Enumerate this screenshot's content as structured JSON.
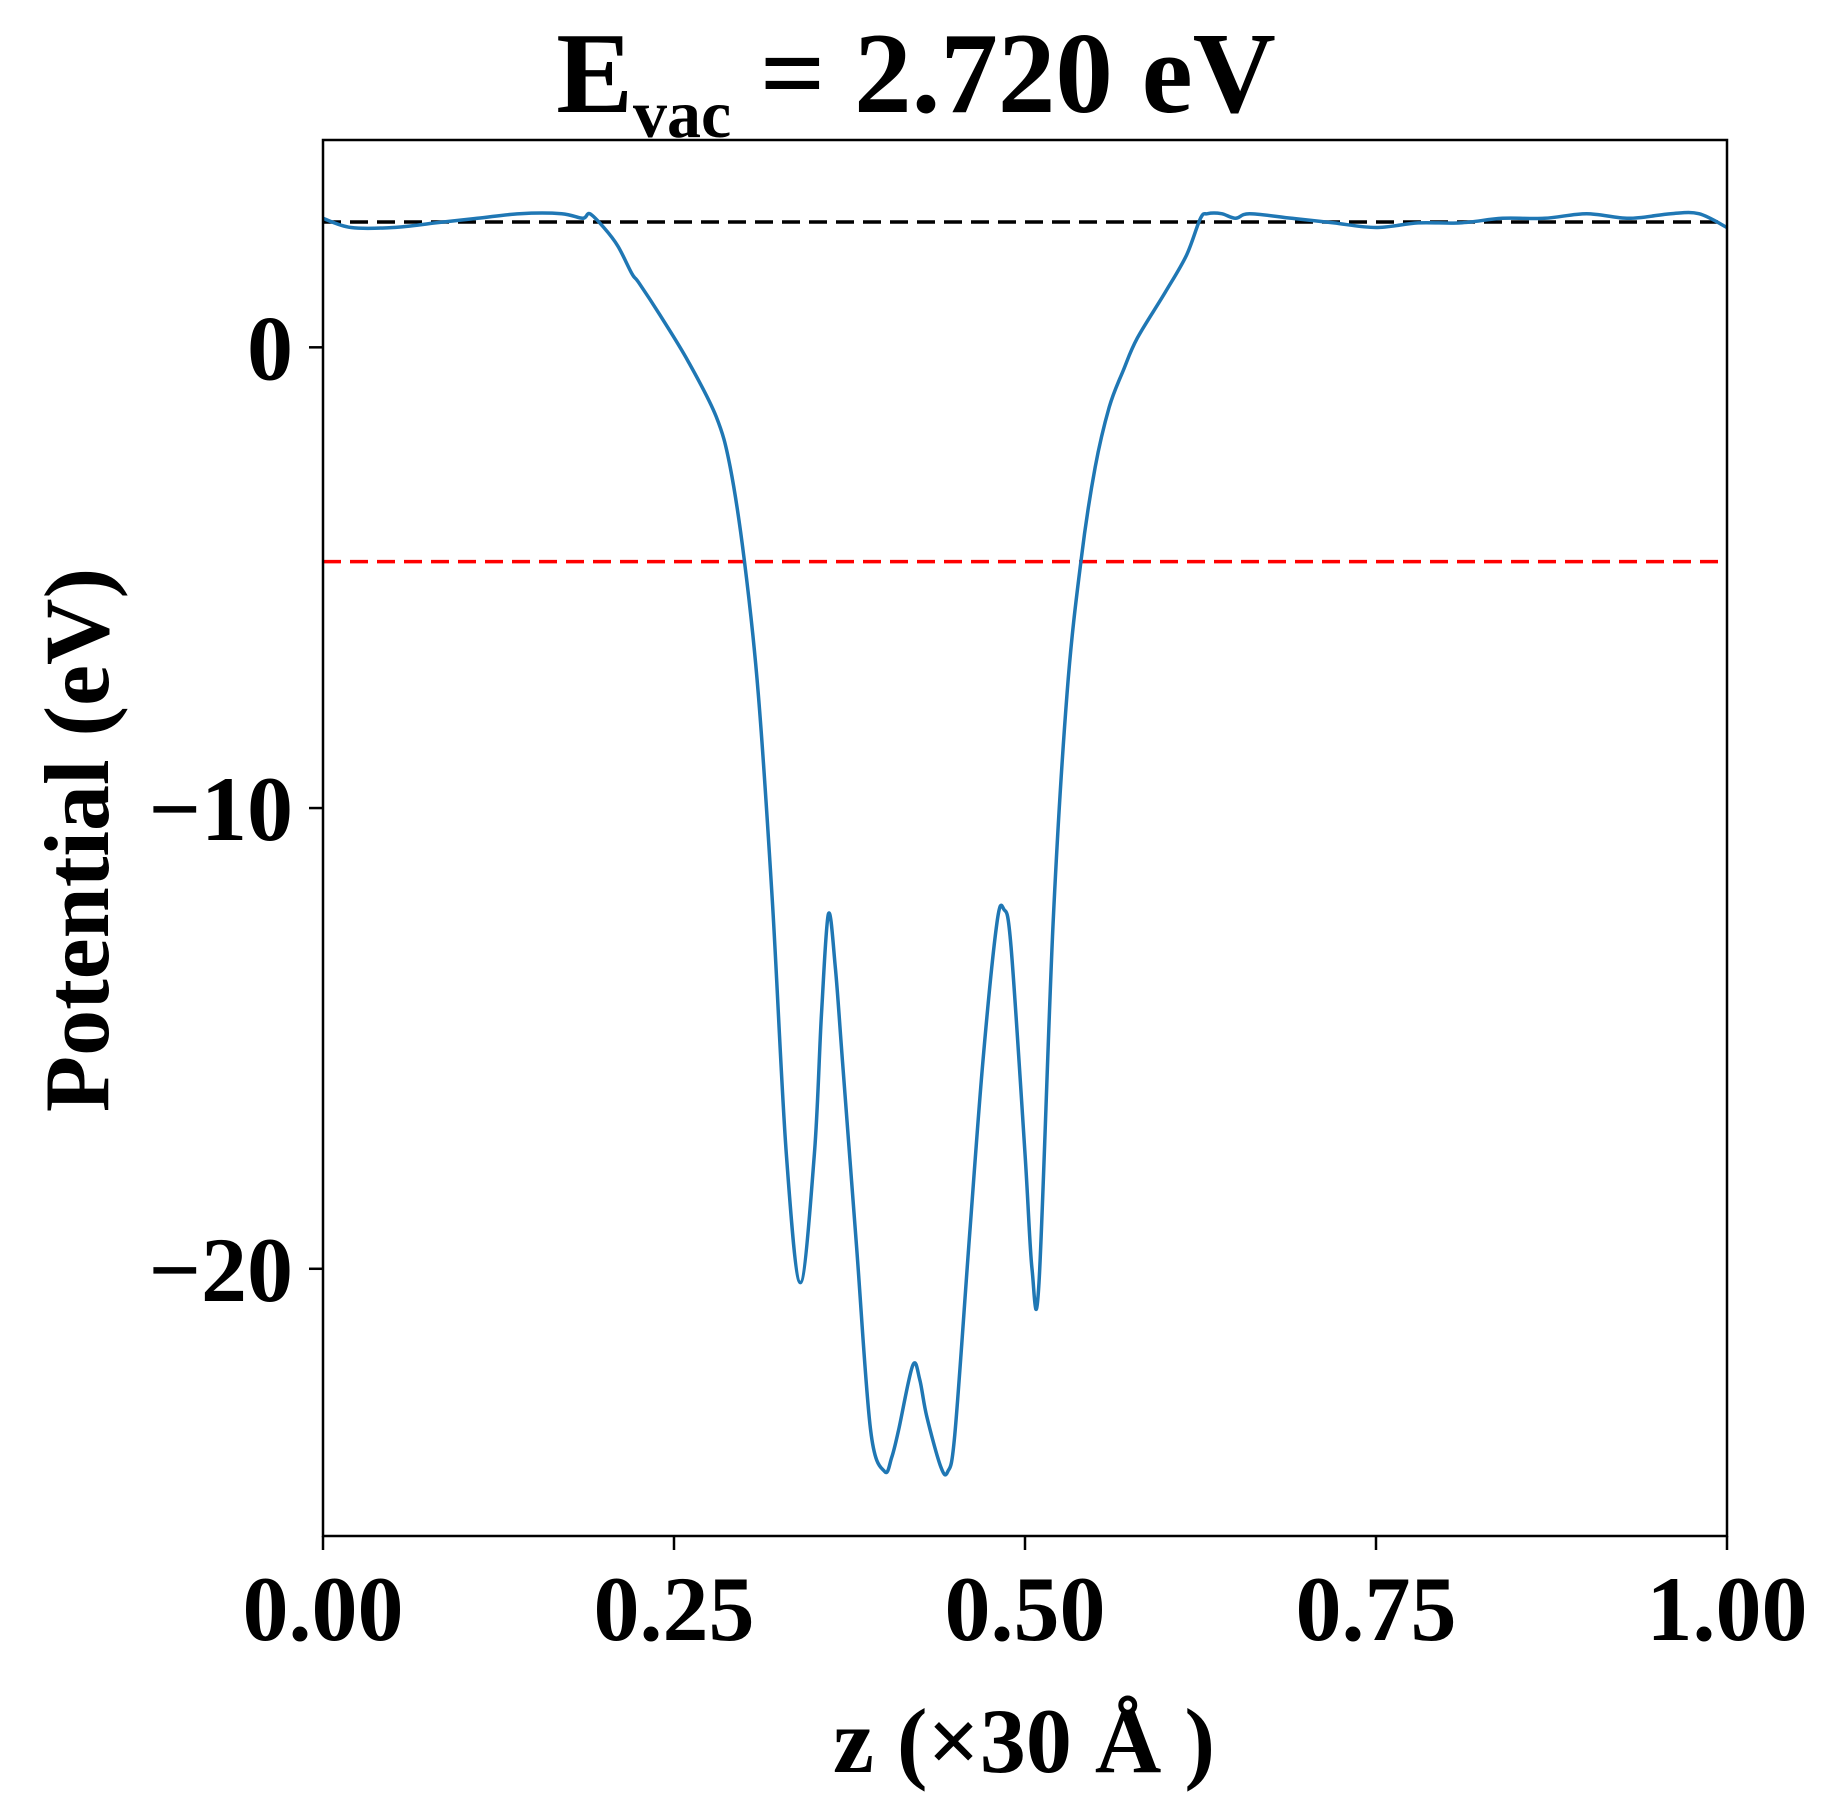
{
  "chart_data": {
    "type": "line",
    "title": {
      "main": "E",
      "subscript": "vac",
      "rest": " = 2.720 eV"
    },
    "xlabel": "z (×30 Å )",
    "ylabel": "Potential (eV)",
    "xlim": [
      0.0,
      1.0
    ],
    "ylim": [
      -25.8,
      4.5
    ],
    "xticks": [
      0.0,
      0.25,
      0.5,
      0.75,
      1.0
    ],
    "xtick_labels": [
      "0.00",
      "0.25",
      "0.50",
      "0.75",
      "1.00"
    ],
    "yticks": [
      0,
      -10,
      -20
    ],
    "ytick_labels": [
      "0",
      "−10",
      "−20"
    ],
    "grid": false,
    "series": [
      {
        "color": "#1f77b4",
        "x": [
          0.0,
          0.02,
          0.05,
          0.08,
          0.11,
          0.14,
          0.17,
          0.185,
          0.19,
          0.2,
          0.21,
          0.22,
          0.225,
          0.24,
          0.26,
          0.28,
          0.29,
          0.3,
          0.31,
          0.32,
          0.33,
          0.34,
          0.35,
          0.355,
          0.36,
          0.365,
          0.37,
          0.38,
          0.39,
          0.4,
          0.405,
          0.41,
          0.42,
          0.425,
          0.43,
          0.44,
          0.445,
          0.45,
          0.46,
          0.47,
          0.48,
          0.485,
          0.49,
          0.5,
          0.505,
          0.51,
          0.52,
          0.53,
          0.54,
          0.55,
          0.56,
          0.57,
          0.58,
          0.6,
          0.615,
          0.625,
          0.63,
          0.64,
          0.65,
          0.66,
          0.69,
          0.72,
          0.75,
          0.78,
          0.81,
          0.84,
          0.87,
          0.9,
          0.93,
          0.96,
          0.98,
          1.0
        ],
        "y": [
          2.8,
          2.6,
          2.6,
          2.7,
          2.8,
          2.9,
          2.9,
          2.8,
          2.9,
          2.6,
          2.2,
          1.6,
          1.4,
          0.7,
          -0.3,
          -1.5,
          -2.6,
          -4.6,
          -7.5,
          -12.0,
          -17.5,
          -20.3,
          -17.5,
          -14.5,
          -12.3,
          -13.5,
          -15.5,
          -19.5,
          -23.5,
          -24.4,
          -24.1,
          -23.5,
          -22.1,
          -22.4,
          -23.2,
          -24.3,
          -24.4,
          -23.6,
          -19.5,
          -15.5,
          -12.5,
          -12.2,
          -13.0,
          -17.5,
          -20.0,
          -20.3,
          -12.5,
          -7.5,
          -4.6,
          -2.6,
          -1.3,
          -0.5,
          0.2,
          1.2,
          2.0,
          2.8,
          2.9,
          2.9,
          2.8,
          2.9,
          2.8,
          2.7,
          2.6,
          2.7,
          2.7,
          2.8,
          2.8,
          2.9,
          2.8,
          2.9,
          2.9,
          2.6
        ]
      }
    ],
    "reference_lines": [
      {
        "y": 2.72,
        "color": "#000000",
        "style": "dashed"
      },
      {
        "y": -4.65,
        "color": "#ff0000",
        "style": "dashed"
      }
    ]
  }
}
